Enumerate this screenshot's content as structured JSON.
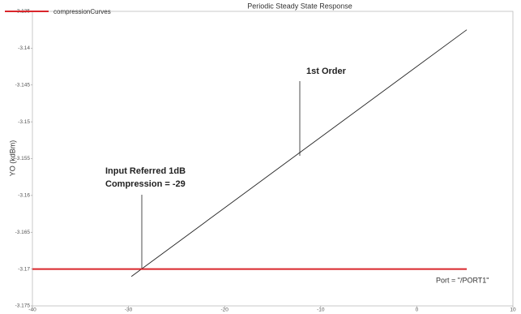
{
  "chart_data": {
    "type": "line",
    "title": "Periodic Steady State Response",
    "ylabel": "YO (kdBm)",
    "xlim": [
      -40,
      10
    ],
    "xticks": [
      -40,
      -30,
      -20,
      -10,
      0,
      10
    ],
    "ylim": [
      -3.175,
      -3.135
    ],
    "yticks": [
      -3.135,
      -3.14,
      -3.145,
      -3.15,
      -3.155,
      -3.16,
      -3.165,
      -3.17,
      -3.175
    ],
    "grid": false,
    "series": [
      {
        "name": "compressionCurves",
        "color": "#d9262b",
        "x": [
          -40,
          5.2
        ],
        "values": [
          -3.17,
          -3.17
        ]
      }
    ],
    "reference_line": {
      "color": "#222222",
      "x": [
        -29.7,
        5.2
      ],
      "values": [
        -3.171,
        -3.1375
      ]
    },
    "annotations": [
      "1st Order",
      "Input Referred 1dB",
      "Compression = -29",
      "Port = \"/PORT1\""
    ]
  }
}
